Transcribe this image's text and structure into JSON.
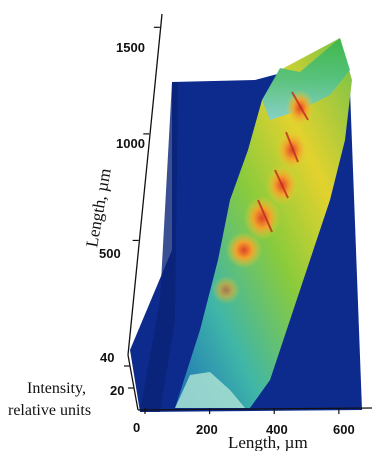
{
  "chart_data": {
    "type": "surface",
    "title": "",
    "xlabel": "Length, µm",
    "ylabel": "Length, µm",
    "zlabel": [
      "Intensity,",
      "relative units"
    ],
    "x_ticks": [
      0,
      200,
      400,
      600
    ],
    "y_ticks": [
      500,
      1000,
      1500
    ],
    "z_ticks": [
      20,
      40
    ],
    "xlim": [
      0,
      650
    ],
    "ylim": [
      0,
      1600
    ],
    "zlim": [
      0,
      50
    ],
    "ridge": {
      "x_start": 130,
      "x_end": 560,
      "y_start": 0,
      "y_end": 1550,
      "peaks": [
        {
          "y": 1550,
          "intensity": 35
        },
        {
          "y": 1350,
          "intensity": 40
        },
        {
          "y": 1150,
          "intensity": 42
        },
        {
          "y": 950,
          "intensity": 44
        },
        {
          "y": 750,
          "intensity": 38
        },
        {
          "y": 500,
          "intensity": 28
        },
        {
          "y": 250,
          "intensity": 20
        },
        {
          "y": 50,
          "intensity": 12
        }
      ]
    },
    "colormap": [
      "#0b2a8a",
      "#1c5fb0",
      "#3ab5c8",
      "#5bc36a",
      "#d9d236",
      "#f2a12e",
      "#d9442a"
    ]
  }
}
